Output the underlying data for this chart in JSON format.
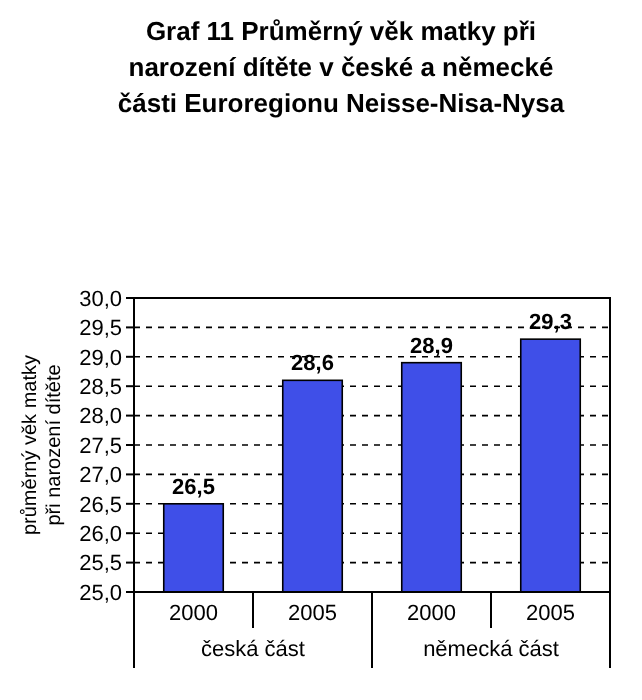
{
  "chart_data": {
    "type": "bar",
    "title": "Graf 11 Průměrný věk matky při narození dítěte v české a německé části Euroregionu Neisse-Nisa-Nysa",
    "ylabel": "průměrný věk matky při narození dítěte",
    "categories": [
      "2000",
      "2005",
      "2000",
      "2005"
    ],
    "values": [
      26.5,
      28.6,
      28.9,
      29.3
    ],
    "value_labels": [
      "26,5",
      "28,6",
      "28,9",
      "29,3"
    ],
    "color": "#3f4fe8",
    "annotations": [
      "česká část",
      "německá část"
    ],
    "ylim": [
      25,
      30
    ],
    "yticks": [
      {
        "value": 25,
        "label": "25,0"
      },
      {
        "value": 25.5,
        "label": "25,5"
      },
      {
        "value": 26,
        "label": "26,0"
      },
      {
        "value": 26.5,
        "label": "26,5"
      },
      {
        "value": 27,
        "label": "27,0"
      },
      {
        "value": 27.5,
        "label": "27,5"
      },
      {
        "value": 28,
        "label": "28,0"
      },
      {
        "value": 28.5,
        "label": "28,5"
      },
      {
        "value": 29,
        "label": "29,0"
      },
      {
        "value": 29.5,
        "label": "29,5"
      },
      {
        "value": 30,
        "label": "30,0"
      }
    ],
    "grid": "y"
  }
}
